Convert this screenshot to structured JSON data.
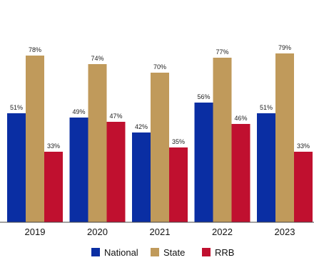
{
  "chart_data": {
    "type": "bar",
    "categories": [
      "2019",
      "2020",
      "2021",
      "2022",
      "2023"
    ],
    "series": [
      {
        "name": "National",
        "values": [
          51,
          49,
          42,
          56,
          51
        ],
        "labels": [
          "51%",
          "49%",
          "42%",
          "56%",
          "51%"
        ],
        "color": "#0a2ea3"
      },
      {
        "name": "State",
        "values": [
          78,
          74,
          70,
          77,
          79
        ],
        "labels": [
          "78%",
          "74%",
          "70%",
          "77%",
          "79%"
        ],
        "color": "#c09a5b"
      },
      {
        "name": "RRB",
        "values": [
          33,
          47,
          35,
          46,
          33
        ],
        "labels": [
          "33%",
          "47%",
          "35%",
          "46%",
          "33%"
        ],
        "color": "#c0102f"
      }
    ],
    "ylim": [
      0,
      100
    ],
    "grid": false,
    "legend_position": "bottom",
    "title": "",
    "xlabel": "",
    "ylabel": ""
  }
}
